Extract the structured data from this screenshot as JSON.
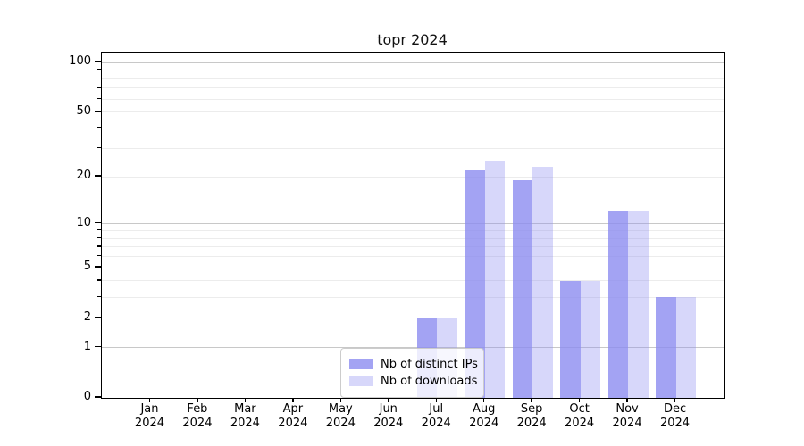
{
  "figure": {
    "background": "#ffffff"
  },
  "chart_data": {
    "type": "bar",
    "title": "topr 2024",
    "categories": [
      "Jan",
      "Feb",
      "Mar",
      "Apr",
      "May",
      "Jun",
      "Jul",
      "Aug",
      "Sep",
      "Oct",
      "Nov",
      "Dec"
    ],
    "category_year_label": "2024",
    "series": [
      {
        "name": "Nb of distinct IPs",
        "values": [
          0,
          0,
          0,
          0,
          0,
          0,
          2,
          22,
          19,
          4,
          12,
          3
        ]
      },
      {
        "name": "Nb of downloads",
        "values": [
          0,
          0,
          0,
          0,
          0,
          0,
          2,
          25,
          23,
          4,
          12,
          3
        ]
      }
    ],
    "y_scale": "log10(1+y)",
    "ylim": [
      0,
      117
    ],
    "y_ticks": [
      0,
      1,
      2,
      5,
      10,
      20,
      50,
      100
    ],
    "y_major_gridlines": [
      1,
      10,
      100
    ],
    "y_minor_gridlines": [
      2,
      3,
      4,
      5,
      6,
      7,
      8,
      9,
      20,
      30,
      40,
      50,
      60,
      70,
      80,
      90
    ],
    "grid": true,
    "legend_position": "lower center"
  },
  "colors": {
    "bar_base": "#8c8cf0",
    "distinct_ips_alpha": 0.8,
    "downloads_alpha": 0.35,
    "major_grid": "#c8c8c8",
    "minor_grid": "#ececec",
    "spine": "#000000",
    "text": "#000000",
    "legend_border": "#cccccc"
  }
}
